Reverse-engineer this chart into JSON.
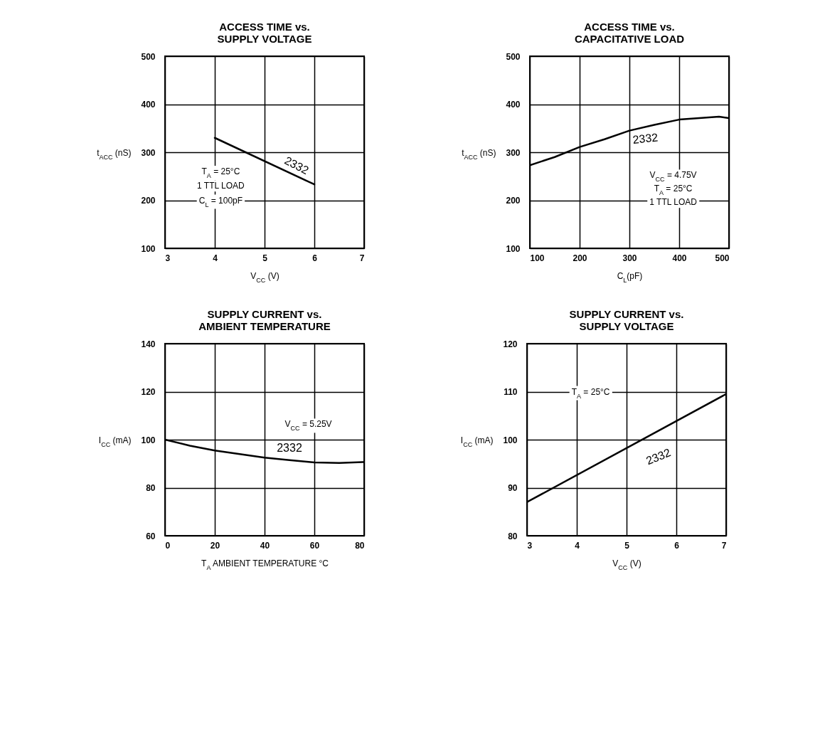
{
  "chart_data": [
    {
      "type": "line",
      "title": "ACCESS TIME vs.\nSUPPLY VOLTAGE",
      "xlabel": "V$_{CC}$  (V)",
      "ylabel": "t$_{ACC}$ (nS)",
      "annotations": [
        "T$_{A}$ = 25°C",
        "1 TTL LOAD",
        "C$_{L}$ = 100pF"
      ],
      "series": [
        {
          "name": "2332",
          "color": "#000000",
          "x": [
            4,
            6
          ],
          "values": [
            330,
            233
          ]
        }
      ],
      "xlim": [
        3,
        7
      ],
      "xticks": [
        3,
        4,
        5,
        6,
        7
      ],
      "ylim": [
        100,
        500
      ],
      "yticks": [
        100,
        200,
        300,
        400,
        500
      ],
      "grid": true
    },
    {
      "type": "line",
      "title": "ACCESS TIME vs.\nCAPACITATIVE LOAD",
      "xlabel": "C$_{L}$(pF)",
      "ylabel": "t$_{ACC}$ (nS)",
      "annotations": [
        "V$_{CC}$ = 4.75V",
        "T$_{A}$ = 25°C",
        "1 TTL LOAD"
      ],
      "series": [
        {
          "name": "2332",
          "color": "#000000",
          "x": [
            100,
            150,
            200,
            250,
            300,
            350,
            400,
            450,
            480,
            500
          ],
          "values": [
            273,
            290,
            311,
            327,
            345,
            357,
            368,
            372,
            374,
            371
          ]
        }
      ],
      "xlim": [
        100,
        500
      ],
      "xticks": [
        100,
        200,
        300,
        400,
        500
      ],
      "ylim": [
        100,
        500
      ],
      "yticks": [
        100,
        200,
        300,
        400,
        500
      ],
      "grid": true
    },
    {
      "type": "line",
      "title": "SUPPLY CURRENT vs.\nAMBIENT TEMPERATURE",
      "xlabel": "T$_{A}$  AMBIENT  TEMPERATURE  °C",
      "ylabel": "I$_{CC}$ (mA)",
      "annotations": [
        "V$_{CC}$ = 5.25V"
      ],
      "series": [
        {
          "name": "2332",
          "color": "#000000",
          "x": [
            0,
            10,
            20,
            30,
            40,
            50,
            60,
            70,
            80
          ],
          "values": [
            100,
            97.5,
            95.5,
            94,
            92.5,
            91.5,
            90.5,
            90.3,
            90.7
          ]
        }
      ],
      "xlim": [
        0,
        80
      ],
      "xticks": [
        0,
        20,
        40,
        60,
        80
      ],
      "ylim": [
        60,
        140
      ],
      "yticks": [
        60,
        80,
        100,
        120,
        140
      ],
      "grid": true
    },
    {
      "type": "line",
      "title": "SUPPLY CURRENT vs.\nSUPPLY VOLTAGE",
      "xlabel": "V$_{CC}$  (V)",
      "ylabel": "I$_{CC}$ (mA)",
      "annotations": [
        "T$_{A}$ = 25°C"
      ],
      "series": [
        {
          "name": "2332",
          "color": "#000000",
          "x": [
            3,
            7
          ],
          "values": [
            87,
            109.5
          ]
        }
      ],
      "xlim": [
        3,
        7
      ],
      "xticks": [
        3,
        4,
        5,
        6,
        7
      ],
      "ylim": [
        80,
        120
      ],
      "yticks": [
        80,
        90,
        100,
        110,
        120
      ],
      "grid": true
    }
  ]
}
